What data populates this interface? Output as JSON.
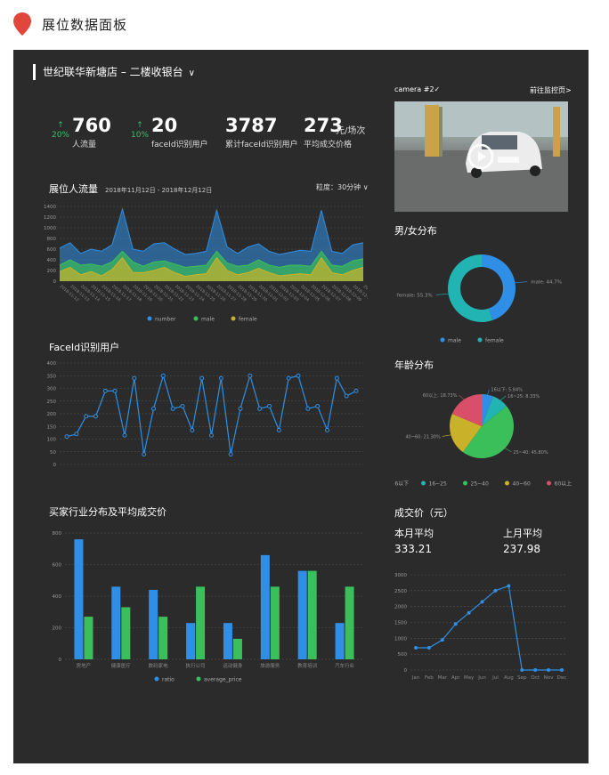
{
  "header": {
    "title": "展位数据面板"
  },
  "store": {
    "name": "世纪联华新塘店 – 二楼收银台"
  },
  "kpis": [
    {
      "trend": "20%",
      "value": "760",
      "label": "人流量"
    },
    {
      "trend": "10%",
      "value": "20",
      "label": "faceId识别用户"
    },
    {
      "value": "3787",
      "label": "累计faceId识别用户"
    },
    {
      "value": "273",
      "unit": "元/场次",
      "label": "平均成交价格"
    }
  ],
  "flow": {
    "title": "展位人流量",
    "range": "2018年11月12日 - 2018年12月12日",
    "granularity": "粒度：30分钟"
  },
  "camera": {
    "name": "camera #2",
    "link": "前往监控页>"
  },
  "gender": {
    "title": "男/女分布"
  },
  "faceid": {
    "title": "FaceId识别用户"
  },
  "age": {
    "title": "年龄分布"
  },
  "industry": {
    "title": "买家行业分布及平均成交价"
  },
  "price": {
    "title": "成交价（元）",
    "this_month_label": "本月平均",
    "this_month_value": "333.21",
    "last_month_label": "上月平均",
    "last_month_value": "237.98"
  },
  "colors": {
    "blue": "#2f8fe6",
    "green": "#3bbf5a",
    "yellow": "#c9b22a",
    "pink": "#d94f6a",
    "teal": "#22b3b3",
    "orange": "#e6a817"
  },
  "chart_data": [
    {
      "type": "area",
      "id": "flow",
      "ylim": [
        0,
        1400
      ],
      "yticks": [
        0,
        200,
        400,
        600,
        800,
        1000,
        1200,
        1400
      ],
      "x": [
        "2018-11-12",
        "2018-11-13",
        "2018-11-14",
        "2018-11-15",
        "2018-11-16",
        "2018-11-17",
        "2018-11-18",
        "2018-11-19",
        "2018-11-20",
        "2018-11-21",
        "2018-11-22",
        "2018-11-23",
        "2018-11-24",
        "2018-11-25",
        "2018-11-26",
        "2018-11-27",
        "2018-11-28",
        "2018-11-29",
        "2018-11-30",
        "2018-12-01",
        "2018-12-02",
        "2018-12-03",
        "2018-12-04",
        "2018-12-05",
        "2018-12-06",
        "2018-12-07",
        "2018-12-08",
        "2018-12-09",
        "2018-12-10",
        "2018-12-11"
      ],
      "series": [
        {
          "name": "number",
          "values": [
            620,
            720,
            520,
            600,
            560,
            680,
            1350,
            600,
            560,
            700,
            720,
            600,
            500,
            520,
            560,
            1330,
            640,
            520,
            640,
            700,
            560,
            500,
            540,
            580,
            560,
            1330,
            560,
            520,
            680,
            720
          ]
        },
        {
          "name": "male",
          "values": [
            300,
            400,
            300,
            320,
            280,
            360,
            560,
            360,
            280,
            360,
            380,
            320,
            260,
            280,
            300,
            560,
            340,
            280,
            300,
            400,
            300,
            260,
            300,
            300,
            280,
            560,
            300,
            280,
            380,
            420
          ]
        },
        {
          "name": "female",
          "values": [
            180,
            260,
            120,
            180,
            100,
            220,
            440,
            160,
            160,
            200,
            260,
            160,
            90,
            120,
            140,
            440,
            200,
            120,
            160,
            240,
            160,
            100,
            120,
            140,
            120,
            440,
            160,
            120,
            200,
            260
          ]
        }
      ],
      "legend": "bottom-center"
    },
    {
      "type": "pie",
      "id": "gender",
      "donut": true,
      "slices": [
        {
          "name": "male",
          "value": 44.7,
          "label": "male: 44.7%"
        },
        {
          "name": "female",
          "value": 55.3,
          "label": "female: 55.3%"
        }
      ],
      "legend": "bottom-center"
    },
    {
      "type": "line",
      "id": "faceid",
      "ylim": [
        0,
        400
      ],
      "yticks": [
        0,
        50,
        100,
        150,
        200,
        250,
        300,
        350,
        400
      ],
      "values": [
        110,
        120,
        190,
        190,
        290,
        290,
        115,
        340,
        40,
        220,
        350,
        220,
        230,
        135,
        340,
        115,
        340,
        40,
        220,
        350,
        220,
        230,
        135,
        340,
        350,
        220,
        230,
        135,
        340,
        270,
        290
      ],
      "legend": "none"
    },
    {
      "type": "pie",
      "id": "age",
      "slices": [
        {
          "name": "16以下",
          "value": 5.84,
          "label": "16以下: 5.84%"
        },
        {
          "name": "16~25",
          "value": 8.33,
          "label": "16~25: 8.33%"
        },
        {
          "name": "25~40",
          "value": 45.8,
          "label": "25~40: 45.80%"
        },
        {
          "name": "40~60",
          "value": 21.3,
          "label": "40~60: 21.30%"
        },
        {
          "name": "60以上",
          "value": 18.73,
          "label": "60以上: 18.73%"
        }
      ],
      "legend": "bottom-center"
    },
    {
      "type": "bar",
      "id": "industry",
      "ylim": [
        0,
        800
      ],
      "yticks": [
        0,
        200,
        400,
        600,
        800
      ],
      "categories": [
        "房地产",
        "健康医疗",
        "数码家电",
        "执行公司",
        "运动健身",
        "旅游服务",
        "教育培训",
        "汽车行业"
      ],
      "series": [
        {
          "name": "ratio",
          "values": [
            760,
            460,
            440,
            230,
            230,
            660,
            560,
            230
          ]
        },
        {
          "name": "average_price",
          "values": [
            270,
            330,
            270,
            460,
            130,
            460,
            560,
            460
          ]
        }
      ],
      "legend": "bottom-center"
    },
    {
      "type": "line",
      "id": "price",
      "ylim": [
        0,
        3000
      ],
      "yticks": [
        0,
        500,
        1000,
        1500,
        2000,
        2500,
        3000
      ],
      "categories": [
        "Jan",
        "Feb",
        "Mar",
        "Apr",
        "May",
        "Jun",
        "Jul",
        "Aug",
        "Sep",
        "Oct",
        "Nov",
        "Dec"
      ],
      "values": [
        700,
        700,
        950,
        1450,
        1800,
        2150,
        2500,
        2650,
        0,
        0,
        0,
        0
      ]
    }
  ]
}
